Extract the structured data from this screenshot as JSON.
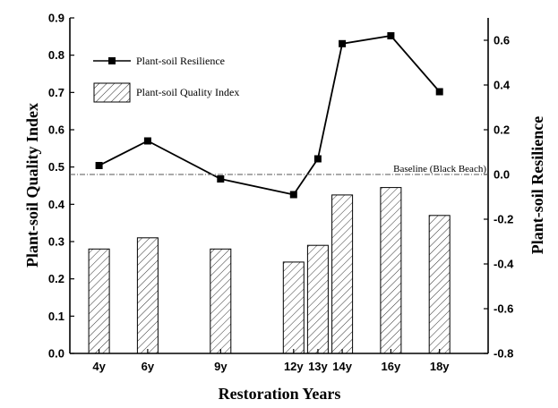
{
  "chart_data": {
    "type": "bar",
    "xlabel": "Restoration Years",
    "ylabel_left": "Plant-soil Quality Index",
    "ylabel_right": "Plant-soil  Resilience",
    "categories": [
      "4y",
      "6y",
      "9y",
      "12y",
      "13y",
      "14y",
      "16y",
      "18y"
    ],
    "x_positions_years": [
      4,
      6,
      9,
      12,
      13,
      14,
      16,
      18
    ],
    "ylim_left": [
      0.0,
      0.9
    ],
    "ylim_right": [
      -0.8,
      0.7
    ],
    "yticks_left": [
      "0.0",
      "0.1",
      "0.2",
      "0.3",
      "0.4",
      "0.5",
      "0.6",
      "0.7",
      "0.8",
      "0.9"
    ],
    "yticks_right": [
      "-0.8",
      "-0.6",
      "-0.4",
      "-0.2",
      "0.0",
      "0.2",
      "0.4",
      "0.6"
    ],
    "series": [
      {
        "name": "Plant-soil Resilience",
        "type": "line",
        "axis": "right",
        "values": [
          0.04,
          0.15,
          -0.02,
          -0.09,
          0.07,
          0.585,
          0.62,
          0.37
        ]
      },
      {
        "name": "Plant-soil Quality Index",
        "type": "bar",
        "axis": "left",
        "values": [
          0.28,
          0.31,
          0.28,
          0.245,
          0.29,
          0.425,
          0.445,
          0.37
        ]
      }
    ],
    "annotations": [
      {
        "text": "Baseline (Black Beach)",
        "axis": "right",
        "y": 0.0
      }
    ],
    "legend_position": "top-left",
    "grid": false
  }
}
